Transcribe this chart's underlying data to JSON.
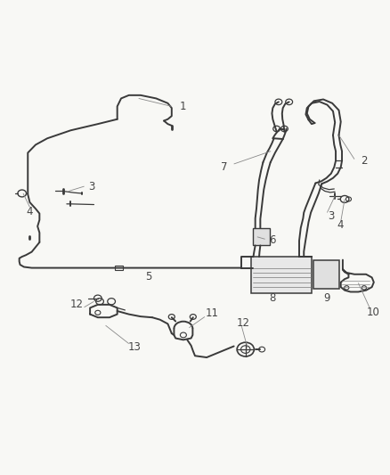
{
  "bg": "#f8f8f5",
  "lc": "#3a3a3a",
  "lc2": "#555555",
  "lw_main": 1.4,
  "lw_thin": 0.9,
  "lw_thick": 2.0,
  "fs": 9,
  "fc": "#444444"
}
